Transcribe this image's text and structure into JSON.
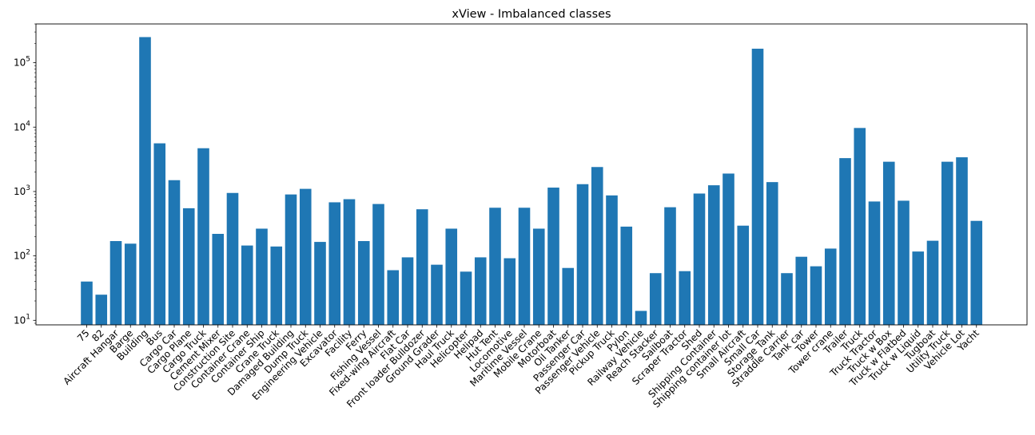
{
  "chart_data": {
    "type": "bar",
    "title": "xView - Imbalanced classes",
    "xlabel": "",
    "ylabel": "",
    "yscale": "log",
    "ylim": [
      8.5,
      400000
    ],
    "yticks": [
      {
        "base": "10",
        "exp": "1",
        "value": 10
      },
      {
        "base": "10",
        "exp": "2",
        "value": 100
      },
      {
        "base": "10",
        "exp": "3",
        "value": 1000
      },
      {
        "base": "10",
        "exp": "4",
        "value": 10000
      },
      {
        "base": "10",
        "exp": "5",
        "value": 100000
      }
    ],
    "color": "#1f77b4",
    "categories": [
      "75",
      "82",
      "Aircraft Hangar",
      "Barge",
      "Building",
      "Bus",
      "Cargo Car",
      "Cargo Plane",
      "Cargo Truck",
      "Cement Mixer",
      "Construction Site",
      "Container Crane",
      "Container Ship",
      "Crane Truck",
      "Damaged Building",
      "Dump Truck",
      "Engineering Vehicle",
      "Excavator",
      "Facility",
      "Ferry",
      "Fishing Vessel",
      "Fixed-wing Aircraft",
      "Flat Car",
      "Front loader Bulldozer",
      "Ground Grader",
      "Haul Truck",
      "Helicopter",
      "Helipad",
      "Hut Tent",
      "Locomotive",
      "Maritime Vessel",
      "Mobile Crane",
      "Motorboat",
      "Oil Tanker",
      "Passenger Car",
      "Passenger Vehicle",
      "Pickup Truck",
      "Pylon",
      "Railway Vehicle",
      "Reach Stacker",
      "Sailboat",
      "Scraper Tractor",
      "Shed",
      "Shipping Container",
      "Shipping container lot",
      "Small Aircraft",
      "Small Car",
      "Storage Tank",
      "Straddle Carrier",
      "Tank car",
      "Tower",
      "Tower crane",
      "Trailer",
      "Truck",
      "Truck Tractor",
      "Truck w Box",
      "Truck w Flatbed",
      "Truck w Liquid",
      "Tugboat",
      "Utility Truck",
      "Vehicle Lot",
      "Yacht"
    ],
    "values": [
      40,
      25,
      170,
      155,
      250000,
      5600,
      1500,
      550,
      4700,
      220,
      950,
      145,
      265,
      140,
      900,
      1100,
      165,
      680,
      760,
      170,
      640,
      60,
      95,
      530,
      73,
      265,
      57,
      95,
      560,
      92,
      560,
      265,
      1150,
      65,
      1300,
      2400,
      870,
      285,
      14,
      54,
      570,
      58,
      930,
      1250,
      1900,
      295,
      165000,
      1400,
      54,
      97,
      69,
      130,
      3300,
      9700,
      700,
      2900,
      720,
      117,
      172,
      2900,
      3400,
      350
    ]
  }
}
